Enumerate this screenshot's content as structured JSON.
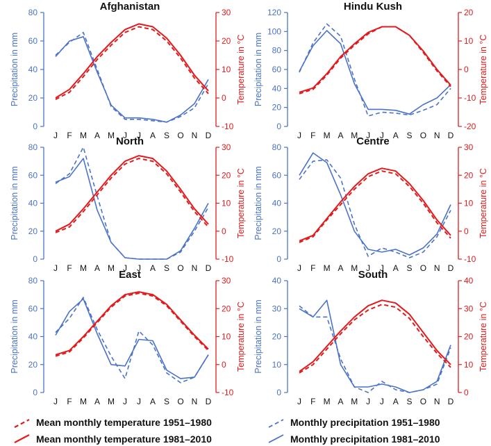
{
  "colors": {
    "precipitation": "#4a72c9",
    "temperature": "#e31a1c",
    "text": "#111111"
  },
  "months": [
    "J",
    "F",
    "M",
    "A",
    "M",
    "J",
    "J",
    "A",
    "S",
    "O",
    "N",
    "D"
  ],
  "legend": {
    "temp_1951": "Mean monthly temperature 1951–1980",
    "temp_1981": "Mean monthly temperature 1981–2010",
    "precip_1951": "Monthly precipitation 1951–1980",
    "precip_1981": "Monthly precipitation 1981–2010"
  },
  "chart_data": [
    {
      "type": "line",
      "title": "Afghanistan",
      "categories": [
        "J",
        "F",
        "M",
        "A",
        "M",
        "J",
        "J",
        "A",
        "S",
        "O",
        "N",
        "D"
      ],
      "ylabel_left": "Precipitation in mm",
      "ylabel_right": "Temperature in °C",
      "ylim_left": [
        0,
        80
      ],
      "yticks_left": [
        0,
        20,
        40,
        60,
        80
      ],
      "ylim_right": [
        -10,
        30
      ],
      "yticks_right": [
        -10,
        0,
        10,
        20,
        30
      ],
      "series": [
        {
          "name": "Monthly precipitation 1951–1980",
          "axis": "left",
          "style": "dashed",
          "values": [
            50,
            59,
            66,
            40,
            14,
            5,
            5,
            4,
            3,
            7,
            13,
            30
          ]
        },
        {
          "name": "Monthly precipitation 1981–2010",
          "axis": "left",
          "style": "solid",
          "values": [
            49,
            60,
            63,
            38,
            15,
            6,
            6,
            5,
            3,
            8,
            16,
            33
          ]
        },
        {
          "name": "Mean monthly temperature 1951–1980",
          "axis": "right",
          "style": "dashed",
          "values": [
            -0.5,
            2,
            7.5,
            13.5,
            18.5,
            23,
            25,
            24,
            20,
            14,
            7,
            1.5
          ]
        },
        {
          "name": "Mean monthly temperature 1981–2010",
          "axis": "right",
          "style": "solid",
          "values": [
            0,
            3,
            8.5,
            14.5,
            19.5,
            24,
            26,
            25,
            21,
            15,
            8,
            2.5
          ]
        }
      ]
    },
    {
      "type": "line",
      "title": "Hindu Kush",
      "categories": [
        "J",
        "F",
        "M",
        "A",
        "M",
        "J",
        "J",
        "A",
        "S",
        "O",
        "N",
        "D"
      ],
      "ylabel_left": "Precipitation in mm",
      "ylabel_right": "Temperature in °C",
      "ylim_left": [
        0,
        120
      ],
      "yticks_left": [
        0,
        20,
        40,
        60,
        80,
        100,
        120
      ],
      "ylim_right": [
        -20,
        20
      ],
      "yticks_right": [
        -20,
        -10,
        0,
        10,
        20
      ],
      "series": [
        {
          "name": "Monthly precipitation 1951–1980",
          "axis": "left",
          "style": "dashed",
          "values": [
            57,
            88,
            108,
            95,
            50,
            11,
            15,
            14,
            12,
            17,
            23,
            40
          ]
        },
        {
          "name": "Monthly precipitation 1981–2010",
          "axis": "left",
          "style": "solid",
          "values": [
            58,
            85,
            101,
            87,
            45,
            18,
            18,
            17,
            13,
            23,
            30,
            44
          ]
        },
        {
          "name": "Mean monthly temperature 1951–1980",
          "axis": "right",
          "style": "dashed",
          "values": [
            -8.5,
            -7,
            -2,
            4,
            8.5,
            12.5,
            15,
            15,
            12,
            6,
            -0.5,
            -6
          ]
        },
        {
          "name": "Mean monthly temperature 1981–2010",
          "axis": "right",
          "style": "solid",
          "values": [
            -8,
            -6.5,
            -1.5,
            4.5,
            9,
            13,
            15,
            15,
            12,
            6.5,
            0,
            -5.5
          ]
        }
      ]
    },
    {
      "type": "line",
      "title": "North",
      "categories": [
        "J",
        "F",
        "M",
        "A",
        "M",
        "J",
        "J",
        "A",
        "S",
        "O",
        "N",
        "D"
      ],
      "ylabel_left": "Precipitation in mm",
      "ylabel_right": "Temperature in °C",
      "ylim_left": [
        0,
        80
      ],
      "yticks_left": [
        0,
        20,
        40,
        60,
        80
      ],
      "ylim_right": [
        -10,
        30
      ],
      "yticks_right": [
        -10,
        0,
        10,
        20,
        30
      ],
      "series": [
        {
          "name": "Monthly precipitation 1951–1980",
          "axis": "left",
          "style": "dashed",
          "values": [
            54,
            61,
            80,
            45,
            12,
            1,
            0,
            0,
            0,
            5,
            20,
            37
          ]
        },
        {
          "name": "Monthly precipitation 1981–2010",
          "axis": "left",
          "style": "solid",
          "values": [
            55,
            59,
            72,
            35,
            12,
            1,
            0,
            0,
            0,
            6,
            22,
            40
          ]
        },
        {
          "name": "Mean monthly temperature 1951–1980",
          "axis": "right",
          "style": "dashed",
          "values": [
            -0.5,
            1.5,
            7,
            13,
            19,
            24,
            26,
            25,
            20.5,
            14,
            7,
            1.5
          ]
        },
        {
          "name": "Mean monthly temperature 1981–2010",
          "axis": "right",
          "style": "solid",
          "values": [
            0,
            2.5,
            8,
            14,
            20,
            25,
            27,
            26,
            21.5,
            15,
            8,
            2.5
          ]
        }
      ]
    },
    {
      "type": "line",
      "title": "Centre",
      "categories": [
        "J",
        "F",
        "M",
        "A",
        "M",
        "J",
        "J",
        "A",
        "S",
        "O",
        "N",
        "D"
      ],
      "ylabel_left": "Precipitation in mm",
      "ylabel_right": "Temperature in °C",
      "ylim_left": [
        0,
        80
      ],
      "yticks_left": [
        0,
        20,
        40,
        60,
        80
      ],
      "ylim_right": [
        -10,
        30
      ],
      "yticks_right": [
        -10,
        0,
        10,
        20,
        30
      ],
      "series": [
        {
          "name": "Monthly precipitation 1951–1980",
          "axis": "left",
          "style": "dashed",
          "values": [
            57,
            70,
            71,
            58,
            25,
            2,
            8,
            5,
            1,
            5,
            16,
            35
          ]
        },
        {
          "name": "Monthly precipitation 1981–2010",
          "axis": "left",
          "style": "solid",
          "values": [
            60,
            76,
            69,
            46,
            20,
            7,
            5,
            7,
            3,
            8,
            18,
            39
          ]
        },
        {
          "name": "Mean monthly temperature 1951–1980",
          "axis": "right",
          "style": "dashed",
          "values": [
            -4,
            -2,
            4,
            9.5,
            15,
            19.5,
            21.5,
            20.5,
            16,
            10,
            3,
            -2.5
          ]
        },
        {
          "name": "Mean monthly temperature 1981–2010",
          "axis": "right",
          "style": "solid",
          "values": [
            -3.5,
            -1.5,
            4.5,
            10.5,
            16,
            20.5,
            22.5,
            21.5,
            17,
            11,
            4,
            -1.5
          ]
        }
      ]
    },
    {
      "type": "line",
      "title": "East",
      "categories": [
        "J",
        "F",
        "M",
        "A",
        "M",
        "J",
        "J",
        "A",
        "S",
        "O",
        "N",
        "D"
      ],
      "ylabel_left": "Precipitation in mm",
      "ylabel_right": "Temperature in °C",
      "ylim_left": [
        0,
        80
      ],
      "yticks_left": [
        0,
        20,
        40,
        60,
        80
      ],
      "ylim_right": [
        -10,
        30
      ],
      "yticks_right": [
        -10,
        0,
        10,
        20,
        30
      ],
      "series": [
        {
          "name": "Monthly precipitation 1951–1980",
          "axis": "left",
          "style": "dashed",
          "values": [
            43,
            53,
            68,
            45,
            26,
            10,
            44,
            34,
            14,
            7,
            11,
            27
          ]
        },
        {
          "name": "Monthly precipitation 1981–2010",
          "axis": "left",
          "style": "solid",
          "values": [
            41,
            58,
            67,
            42,
            20,
            19,
            38,
            37,
            16,
            10,
            11,
            27
          ]
        },
        {
          "name": "Mean monthly temperature 1951–1980",
          "axis": "right",
          "style": "dashed",
          "values": [
            3,
            4.5,
            9.5,
            15,
            20.5,
            24.5,
            25.5,
            24.5,
            21,
            15.5,
            10,
            5
          ]
        },
        {
          "name": "Mean monthly temperature 1981–2010",
          "axis": "right",
          "style": "solid",
          "values": [
            3.5,
            5,
            10,
            15.5,
            21,
            25,
            26,
            25,
            21.5,
            16,
            10.5,
            5.5
          ]
        }
      ]
    },
    {
      "type": "line",
      "title": "South",
      "categories": [
        "J",
        "F",
        "M",
        "A",
        "M",
        "J",
        "J",
        "A",
        "S",
        "O",
        "N",
        "D"
      ],
      "ylabel_left": "Precipitation in mm",
      "ylabel_right": "Temperature in °C",
      "ylim_left": [
        0,
        40
      ],
      "yticks_left": [
        0,
        10,
        20,
        30,
        40
      ],
      "ylim_right": [
        0,
        40
      ],
      "yticks_right": [
        0,
        10,
        20,
        30,
        40
      ],
      "series": [
        {
          "name": "Monthly precipitation 1951–1980",
          "axis": "left",
          "style": "dashed",
          "values": [
            31,
            27,
            27,
            12,
            2,
            0,
            4,
            1,
            0,
            1,
            3,
            16
          ]
        },
        {
          "name": "Monthly precipitation 1981–2010",
          "axis": "left",
          "style": "solid",
          "values": [
            30,
            27,
            33,
            10,
            2,
            2,
            3,
            2,
            0,
            1,
            4,
            17
          ]
        },
        {
          "name": "Mean monthly temperature 1951–1980",
          "axis": "right",
          "style": "dashed",
          "values": [
            7,
            10,
            15.5,
            21,
            26,
            29.5,
            31.5,
            30.5,
            26.5,
            20,
            14,
            9
          ]
        },
        {
          "name": "Mean monthly temperature 1981–2010",
          "axis": "right",
          "style": "solid",
          "values": [
            7.5,
            11,
            16.5,
            22,
            27,
            31,
            33,
            32,
            28,
            21.5,
            15,
            10
          ]
        }
      ]
    }
  ]
}
